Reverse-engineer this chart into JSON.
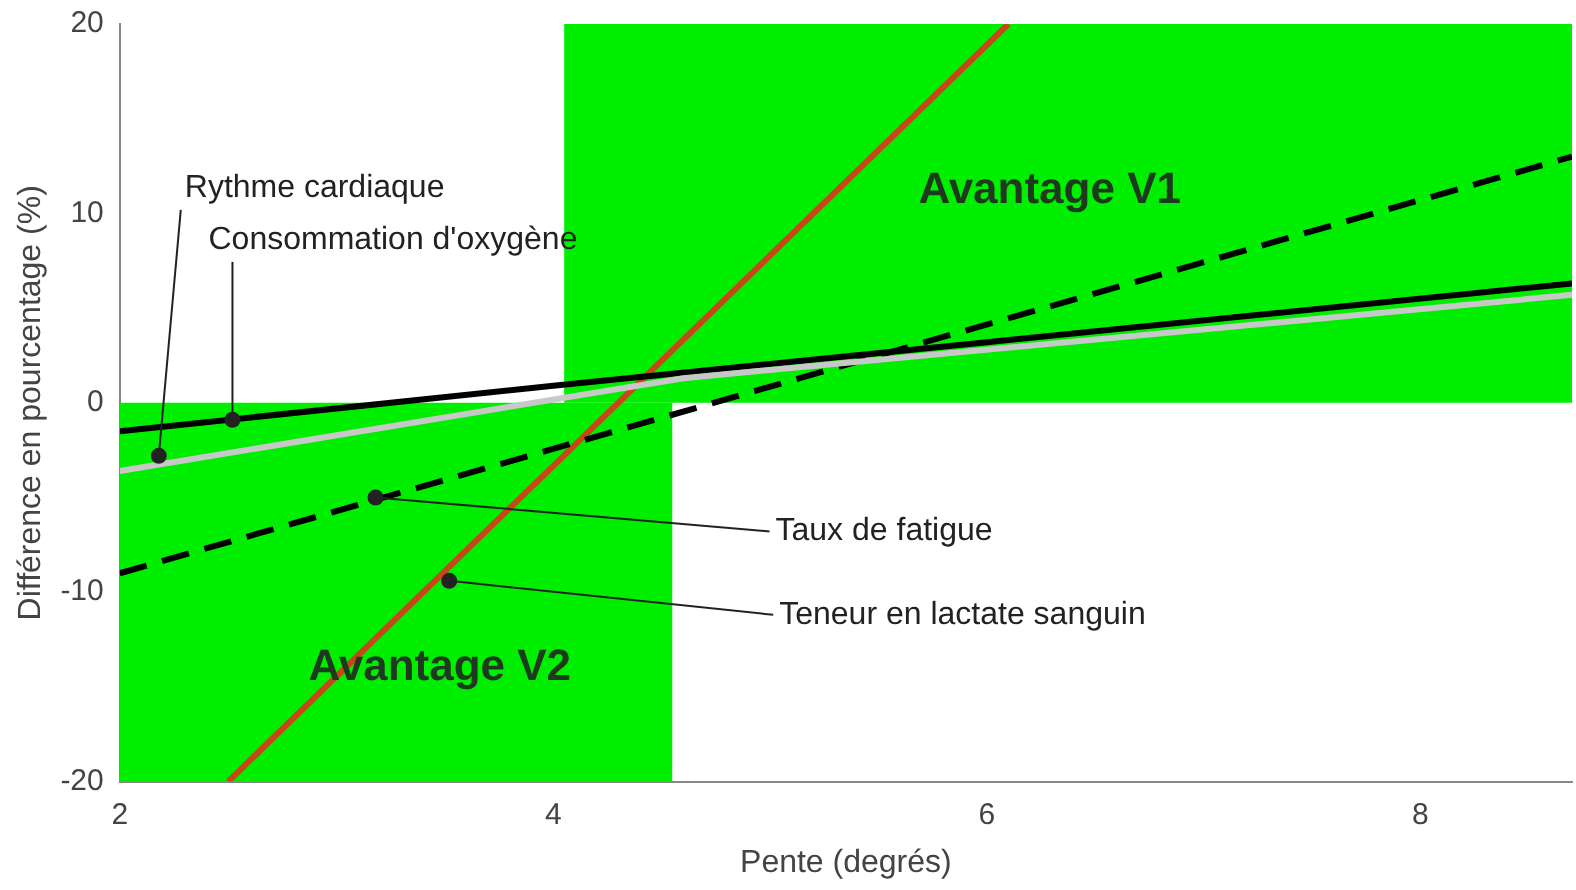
{
  "chart_data": {
    "type": "line",
    "xlabel": "Pente (degrés)",
    "ylabel": "Différence en pourcentage (%)",
    "xlim": [
      2,
      8.7
    ],
    "xticks": [
      2,
      4,
      6,
      8
    ],
    "ylim": [
      -20,
      20
    ],
    "yticks": [
      -20,
      -10,
      0,
      10,
      20
    ],
    "grid": false,
    "legend": false,
    "marker": "none",
    "series": [
      {
        "type": "area",
        "color": "#00ee00",
        "x": [
          4.05,
          8.7
        ],
        "values": [
          20,
          20
        ]
      },
      {
        "type": "area",
        "color": "#00ee00",
        "x": [
          2,
          4.55
        ],
        "values": [
          -20,
          -20
        ]
      },
      {
        "color": "#c8c8c8",
        "x": [
          2,
          4.6,
          8.7
        ],
        "values": [
          -3.6,
          1.3,
          5.7
        ]
      },
      {
        "color": "#000000",
        "x": [
          2,
          4,
          6,
          8.7
        ],
        "values": [
          -1.5,
          0.9,
          3.2,
          6.3
        ]
      },
      {
        "color": "#000000",
        "line_style": "dashed",
        "x": [
          2,
          8.7
        ],
        "values": [
          -9,
          13
        ]
      },
      {
        "color": "#c8461a",
        "x": [
          2.5,
          6.1
        ],
        "values": [
          -20,
          20
        ]
      }
    ],
    "annotations": [
      {
        "text": "Rythme cardiaque",
        "x": 2.18,
        "y": -2.8
      },
      {
        "text": "Consommation d'oxygène",
        "x": 2.52,
        "y": -0.9
      },
      {
        "text": "Taux de fatigue",
        "x": 3.18,
        "y": -5
      },
      {
        "text": "Teneur en lactate sanguin",
        "x": 3.52,
        "y": -9.4
      },
      "Avantage V1",
      "Avantage V2"
    ]
  }
}
